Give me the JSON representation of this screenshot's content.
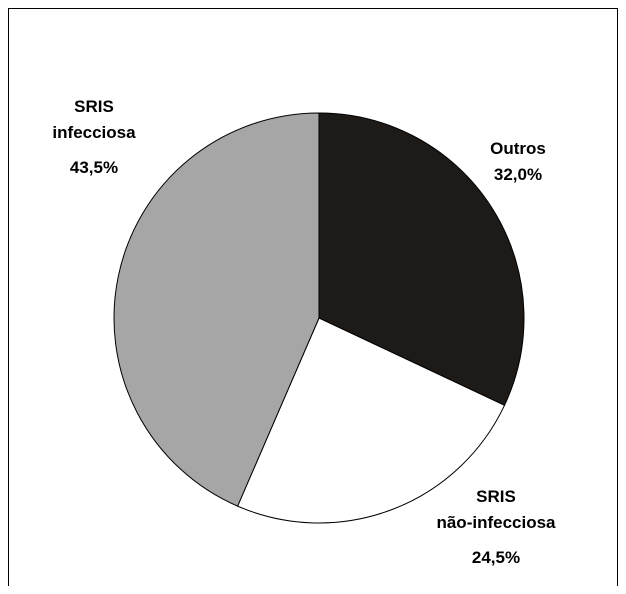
{
  "chart_data": {
    "type": "pie",
    "slices": [
      {
        "label_lines": [
          "Outros"
        ],
        "value_label": "32,0%",
        "value": 32.0,
        "color": "#1e1a18"
      },
      {
        "label_lines": [
          "SRIS",
          "não-infecciosa"
        ],
        "value_label": "24,5%",
        "value": 24.5,
        "color": "#ffffff"
      },
      {
        "label_lines": [
          "SRIS",
          "infecciosa"
        ],
        "value_label": "43,5%",
        "value": 43.5,
        "color": "#a6a6a6"
      }
    ],
    "legend": "none",
    "grid": false
  }
}
